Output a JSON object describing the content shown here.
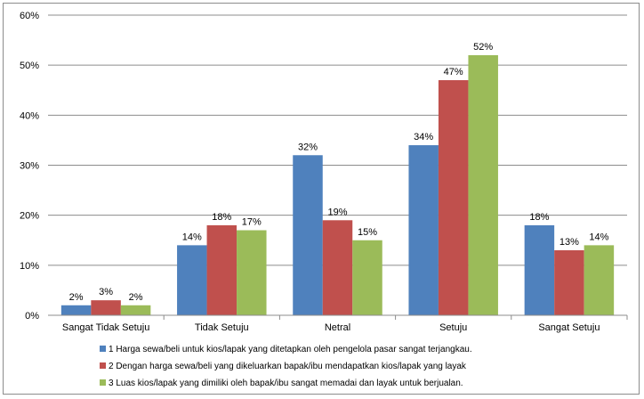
{
  "chart_data": {
    "type": "bar",
    "categories": [
      "Sangat Tidak Setuju",
      "Tidak Setuju",
      "Netral",
      "Setuju",
      "Sangat Setuju"
    ],
    "series": [
      {
        "name": "1 Harga sewa/beli untuk kios/lapak yang ditetapkan oleh pengelola pasar sangat terjangkau.",
        "values": [
          2,
          14,
          32,
          34,
          18
        ],
        "labels": [
          "2%",
          "14%",
          "32%",
          "34%",
          "18%"
        ],
        "color": "#4f81bd"
      },
      {
        "name": "2 Dengan harga sewa/beli yang dikeluarkan bapak/ibu mendapatkan kios/lapak yang layak",
        "values": [
          3,
          18,
          19,
          47,
          13
        ],
        "labels": [
          "3%",
          "18%",
          "19%",
          "47%",
          "13%"
        ],
        "color": "#c0504d"
      },
      {
        "name": "3 Luas kios/lapak yang dimiliki oleh bapak/ibu sangat memadai dan layak untuk berjualan.",
        "values": [
          2,
          17,
          15,
          52,
          14
        ],
        "labels": [
          "2%",
          "17%",
          "15%",
          "52%",
          "14%"
        ],
        "color": "#9bbb59"
      }
    ],
    "yticks": [
      "0%",
      "10%",
      "20%",
      "30%",
      "40%",
      "50%",
      "60%"
    ],
    "ylim": [
      0,
      60
    ],
    "grid": true,
    "legend_position": "bottom"
  }
}
